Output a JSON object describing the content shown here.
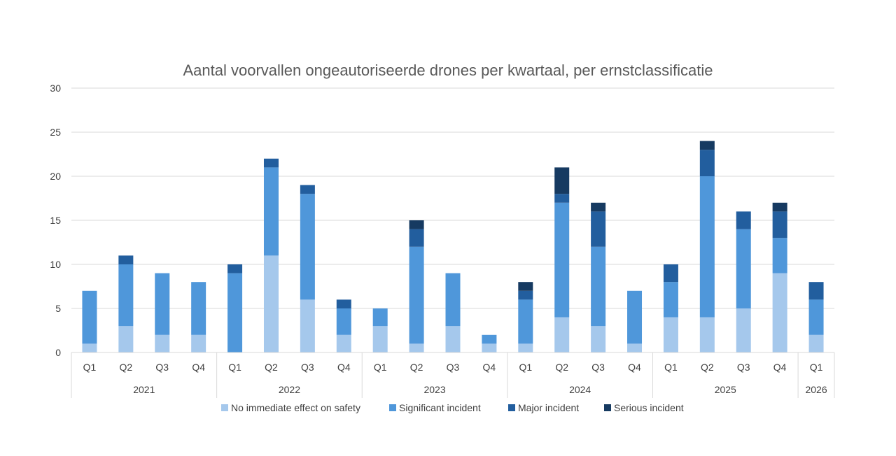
{
  "chart_data": {
    "type": "bar",
    "stacked": true,
    "title": "Aantal voorvallen ongeautoriseerde drones per kwartaal, per ernstclassificatie",
    "xlabel": "",
    "ylabel": "",
    "ylim": [
      0,
      30
    ],
    "yticks": [
      0,
      5,
      10,
      15,
      20,
      25,
      30
    ],
    "grid": true,
    "legend_position": "bottom",
    "categories": [
      "Q1",
      "Q2",
      "Q3",
      "Q4",
      "Q1",
      "Q2",
      "Q3",
      "Q4",
      "Q1",
      "Q2",
      "Q3",
      "Q4",
      "Q1",
      "Q2",
      "Q3",
      "Q4",
      "Q1",
      "Q2",
      "Q3",
      "Q4",
      "Q1"
    ],
    "groups": [
      {
        "label": "2021",
        "count": 4
      },
      {
        "label": "2022",
        "count": 4
      },
      {
        "label": "2023",
        "count": 4
      },
      {
        "label": "2024",
        "count": 4
      },
      {
        "label": "2025",
        "count": 4
      },
      {
        "label": "2026",
        "count": 1
      }
    ],
    "series": [
      {
        "name": "No immediate effect on safety",
        "color": "#a5c8ec",
        "values": [
          1,
          3,
          2,
          2,
          0,
          11,
          6,
          2,
          3,
          1,
          3,
          1,
          1,
          4,
          3,
          1,
          4,
          4,
          5,
          9,
          2
        ]
      },
      {
        "name": "Significant incident",
        "color": "#4f97da",
        "values": [
          6,
          7,
          7,
          6,
          9,
          10,
          12,
          3,
          2,
          11,
          6,
          1,
          5,
          13,
          9,
          6,
          4,
          16,
          9,
          4,
          4
        ]
      },
      {
        "name": "Major incident",
        "color": "#225e9e",
        "values": [
          0,
          1,
          0,
          0,
          1,
          1,
          1,
          1,
          0,
          2,
          0,
          0,
          1,
          1,
          4,
          0,
          2,
          3,
          2,
          3,
          2
        ]
      },
      {
        "name": "Serious incident",
        "color": "#163a61",
        "values": [
          0,
          0,
          0,
          0,
          0,
          0,
          0,
          0,
          0,
          1,
          0,
          0,
          1,
          3,
          1,
          0,
          0,
          1,
          0,
          1,
          0
        ]
      }
    ]
  }
}
